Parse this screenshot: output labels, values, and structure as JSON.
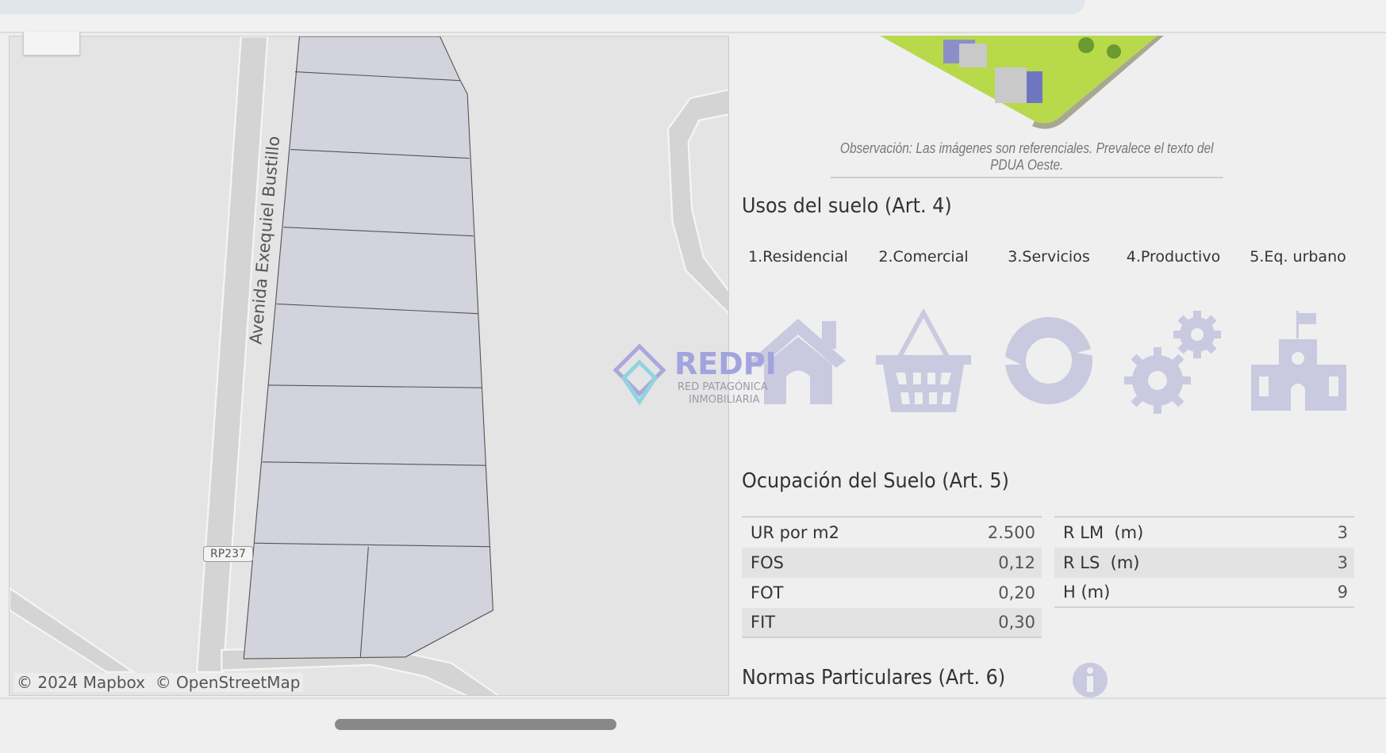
{
  "map": {
    "road_label": "Avenida Exequiel Bustillo",
    "route_shield": "RP237",
    "attribution": "© 2024 Mapbox  © OpenStreetMap"
  },
  "watermark": {
    "brand": "REDPI",
    "line1": "RED PATAGÓNICA",
    "line2": "INMOBILIARIA"
  },
  "panel": {
    "caption": "Observación: Las imágenes son referenciales. Prevalece el texto del PDUA Oeste.",
    "usos": {
      "title": "Usos del suelo (Art. 4)",
      "items": [
        {
          "label": "1.Residencial",
          "icon": "house-icon"
        },
        {
          "label": "2.Comercial",
          "icon": "basket-icon"
        },
        {
          "label": "3.Servicios",
          "icon": "cycle-icon"
        },
        {
          "label": "4.Productivo",
          "icon": "gears-icon"
        },
        {
          "label": "5.Eq. urbano",
          "icon": "school-icon"
        }
      ],
      "icon_color": "#c9c9e0"
    },
    "ocupacion": {
      "title": "Ocupación del Suelo (Art. 5)",
      "left": [
        {
          "label": "UR por m2",
          "value": "2.500"
        },
        {
          "label": "FOS",
          "value": "0,12"
        },
        {
          "label": "FOT",
          "value": "0,20"
        },
        {
          "label": "FIT",
          "value": "0,30"
        }
      ],
      "right": [
        {
          "label": "R LM  (m)",
          "value": "3"
        },
        {
          "label": "R LS  (m)",
          "value": "3"
        },
        {
          "label": "H (m)",
          "value": "9"
        }
      ]
    },
    "normas": {
      "title": "Normas Particulares (Art. 6)",
      "icon": "info-icon"
    }
  }
}
